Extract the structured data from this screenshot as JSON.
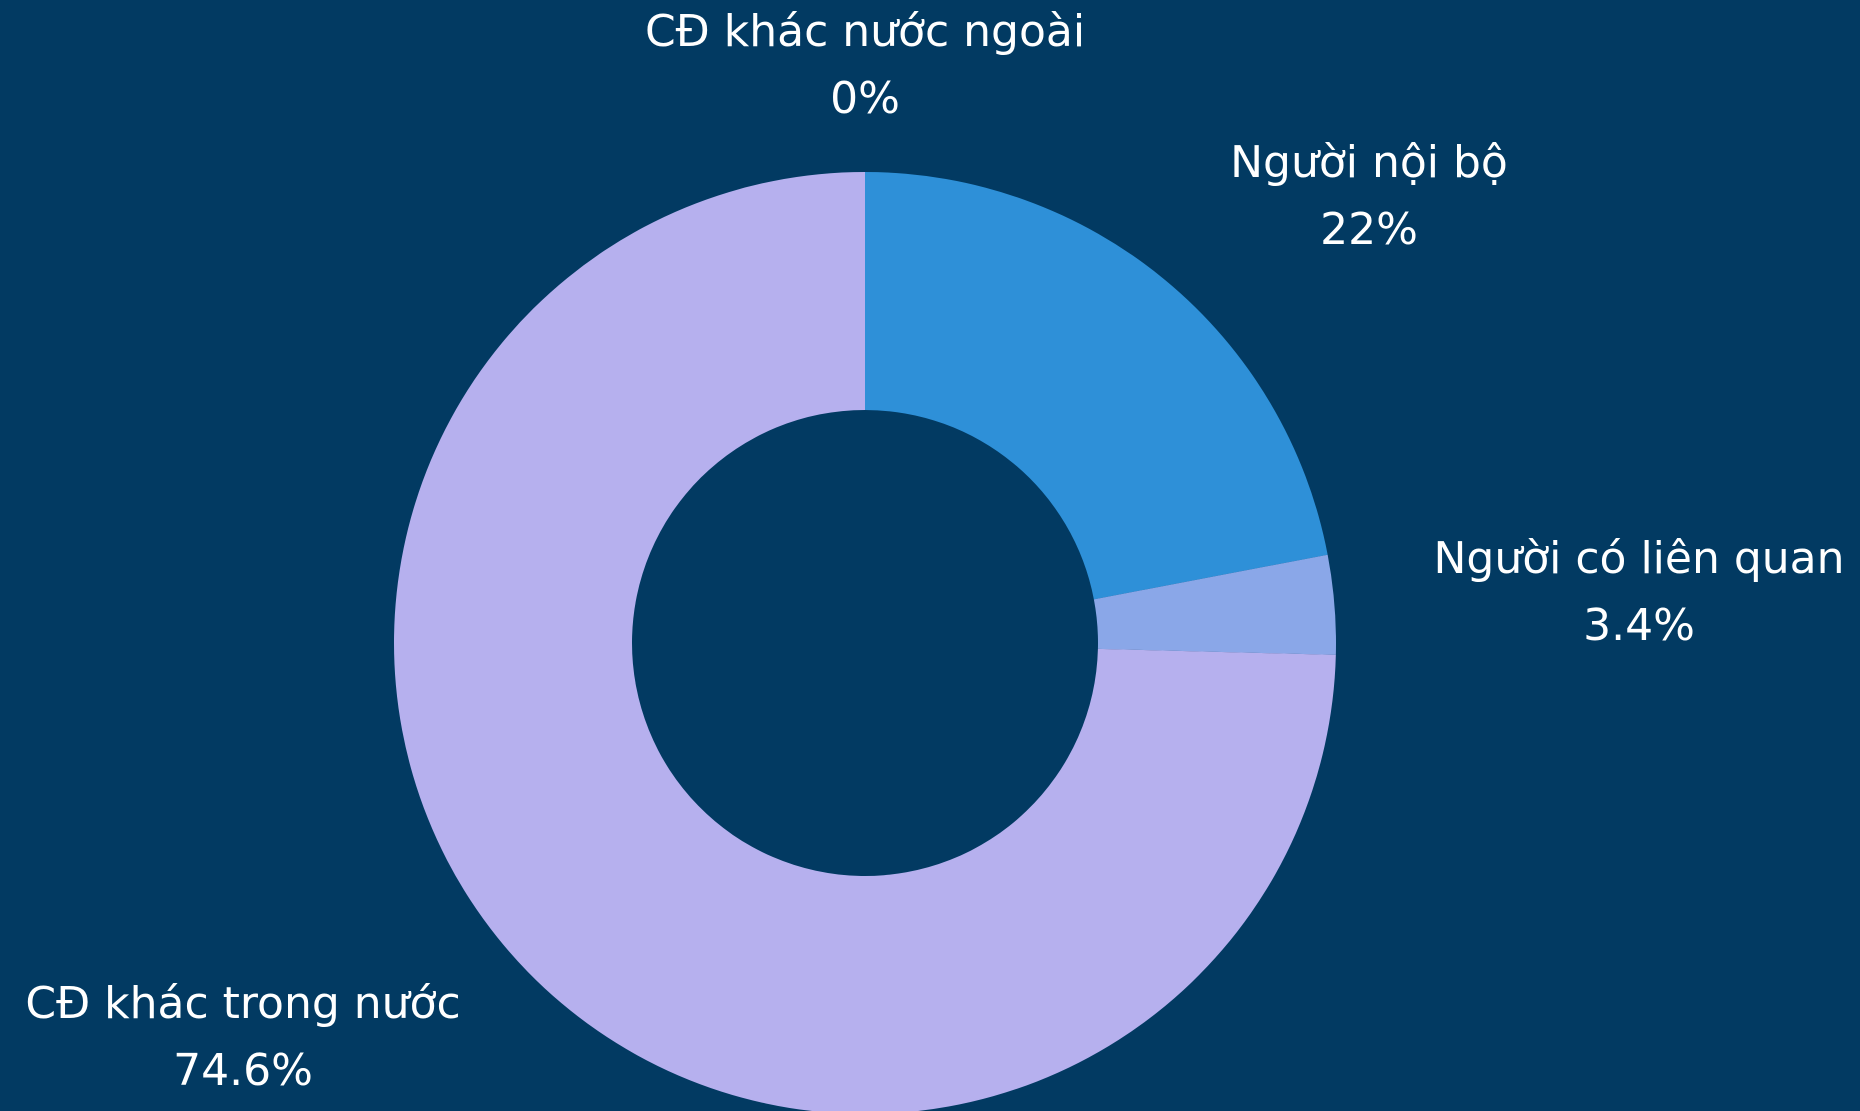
{
  "background_color": "#023a62",
  "chart_data": {
    "type": "pie",
    "style": "donut",
    "start": "top",
    "direction": "clockwise",
    "slices": [
      {
        "label": "Người nội bộ",
        "value": 22,
        "value_label": "22%",
        "color": "#2e90d8"
      },
      {
        "label": "Người có liên quan",
        "value": 3.4,
        "value_label": "3.4%",
        "color": "#8aa7e8"
      },
      {
        "label": "CĐ khác trong nước",
        "value": 74.6,
        "value_label": "74.6%",
        "color": "#b6b0ee"
      },
      {
        "label": "CĐ khác nước ngoài",
        "value": 0,
        "value_label": "0%",
        "color": "#2f6f9f"
      }
    ]
  }
}
